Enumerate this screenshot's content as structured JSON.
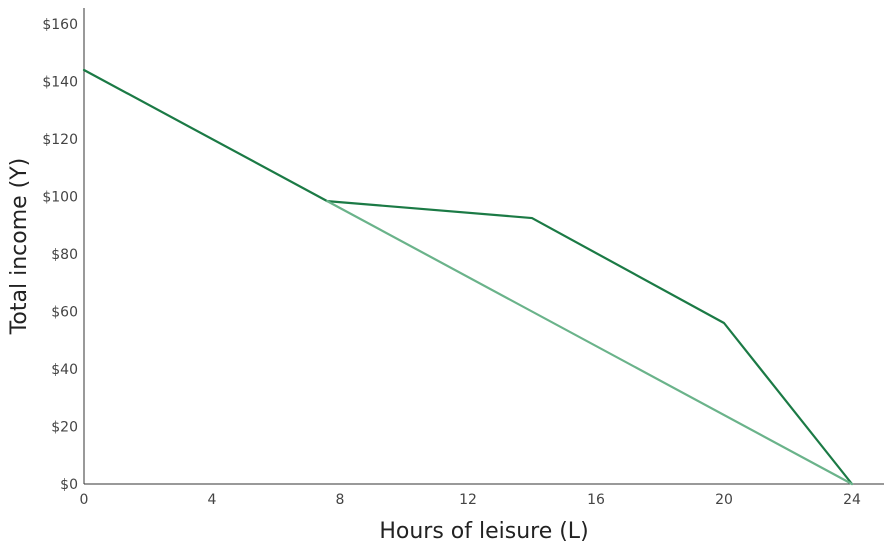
{
  "chart_data": {
    "type": "line",
    "title": "",
    "xlabel": "Hours of leisure (L)",
    "ylabel": "Total income (Y)",
    "xlim": [
      0,
      25
    ],
    "ylim": [
      0,
      165
    ],
    "x_ticks": [
      0,
      4,
      8,
      12,
      16,
      20,
      24
    ],
    "x_tick_labels": [
      "0",
      "4",
      "8",
      "12",
      "16",
      "20",
      "24"
    ],
    "y_ticks": [
      0,
      20,
      40,
      60,
      80,
      100,
      120,
      140,
      160
    ],
    "y_tick_labels": [
      "$0",
      "$20",
      "$40",
      "$60",
      "$80",
      "$100",
      "$120",
      "$140",
      "$160"
    ],
    "grid": false,
    "series": [
      {
        "color": "#1b7a45",
        "x": [
          0,
          7.6,
          14,
          20,
          24
        ],
        "y": [
          144,
          98.4,
          92.5,
          56,
          0
        ]
      },
      {
        "color": "#6ab38a",
        "x": [
          7.6,
          24
        ],
        "y": [
          98.4,
          0
        ]
      }
    ]
  }
}
